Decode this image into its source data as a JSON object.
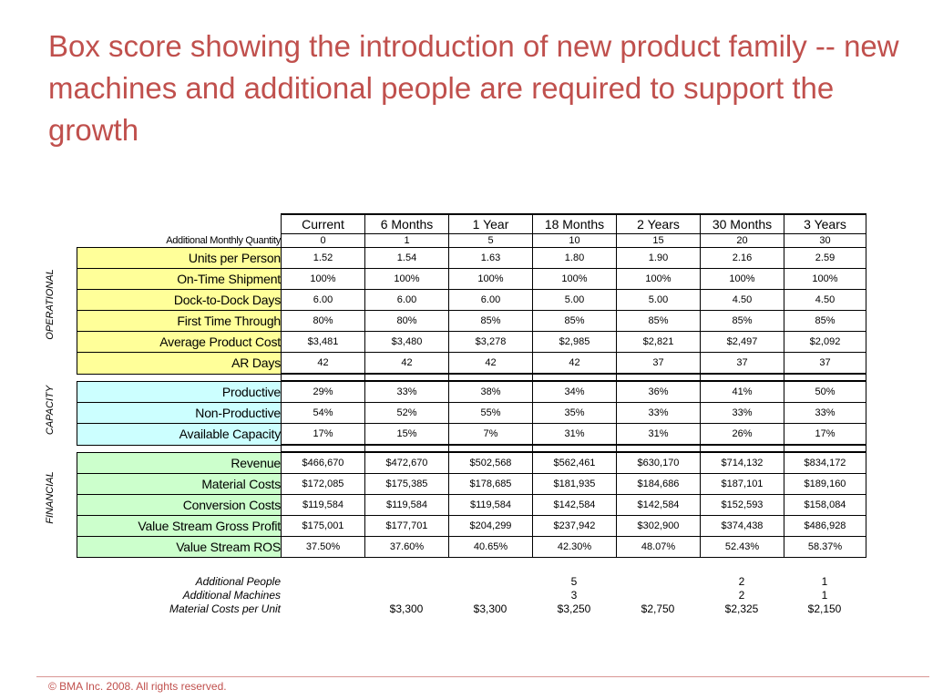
{
  "title": "Box score showing the introduction of new product family -- new machines and additional people are required to support the growth",
  "columns": [
    "Current",
    "6 Months",
    "1 Year",
    "18 Months",
    "2 Years",
    "30 Months",
    "3 Years"
  ],
  "quantity_label": "Additional Monthly Quantity",
  "quantities": [
    "0",
    "1",
    "5",
    "10",
    "15",
    "20",
    "30"
  ],
  "sections": {
    "operational": {
      "label": "OPERATIONAL",
      "rows": [
        {
          "label": "Units per Person",
          "values": [
            "1.52",
            "1.54",
            "1.63",
            "1.80",
            "1.90",
            "2.16",
            "2.59"
          ]
        },
        {
          "label": "On-Time Shipment",
          "values": [
            "100%",
            "100%",
            "100%",
            "100%",
            "100%",
            "100%",
            "100%"
          ]
        },
        {
          "label": "Dock-to-Dock Days",
          "values": [
            "6.00",
            "6.00",
            "6.00",
            "5.00",
            "5.00",
            "4.50",
            "4.50"
          ]
        },
        {
          "label": "First Time Through",
          "values": [
            "80%",
            "80%",
            "85%",
            "85%",
            "85%",
            "85%",
            "85%"
          ]
        },
        {
          "label": "Average Product Cost",
          "values": [
            "$3,481",
            "$3,480",
            "$3,278",
            "$2,985",
            "$2,821",
            "$2,497",
            "$2,092"
          ]
        },
        {
          "label": "AR Days",
          "values": [
            "42",
            "42",
            "42",
            "42",
            "37",
            "37",
            "37"
          ]
        }
      ]
    },
    "capacity": {
      "label": "CAPACITY",
      "rows": [
        {
          "label": "Productive",
          "values": [
            "29%",
            "33%",
            "38%",
            "34%",
            "36%",
            "41%",
            "50%"
          ]
        },
        {
          "label": "Non-Productive",
          "values": [
            "54%",
            "52%",
            "55%",
            "35%",
            "33%",
            "33%",
            "33%"
          ]
        },
        {
          "label": "Available Capacity",
          "values": [
            "17%",
            "15%",
            "7%",
            "31%",
            "31%",
            "26%",
            "17%"
          ]
        }
      ]
    },
    "financial": {
      "label": "FINANCIAL",
      "rows": [
        {
          "label": "Revenue",
          "values": [
            "$466,670",
            "$472,670",
            "$502,568",
            "$562,461",
            "$630,170",
            "$714,132",
            "$834,172"
          ]
        },
        {
          "label": "Material Costs",
          "values": [
            "$172,085",
            "$175,385",
            "$178,685",
            "$181,935",
            "$184,686",
            "$187,101",
            "$189,160"
          ]
        },
        {
          "label": "Conversion Costs",
          "values": [
            "$119,584",
            "$119,584",
            "$119,584",
            "$142,584",
            "$142,584",
            "$152,593",
            "$158,084"
          ]
        },
        {
          "label": "Value Stream Gross Profit",
          "values": [
            "$175,001",
            "$177,701",
            "$204,299",
            "$237,942",
            "$302,900",
            "$374,438",
            "$486,928"
          ]
        },
        {
          "label": "Value Stream ROS",
          "values": [
            "37.50%",
            "37.60%",
            "40.65%",
            "42.30%",
            "48.07%",
            "52.43%",
            "58.37%"
          ]
        }
      ]
    }
  },
  "additional": [
    {
      "label": "Additional People",
      "values": [
        "",
        "",
        "",
        "5",
        "",
        "2",
        "1"
      ]
    },
    {
      "label": "Additional Machines",
      "values": [
        "",
        "",
        "",
        "3",
        "",
        "2",
        "1"
      ]
    },
    {
      "label": "Material Costs per Unit",
      "values": [
        "",
        "$3,300",
        "$3,300",
        "$3,250",
        "$2,750",
        "$2,325",
        "$2,150"
      ]
    }
  ],
  "footer": "© BMA Inc.  2008.  All rights reserved.",
  "colors": {
    "title": "#c0504d",
    "operational": "#ffff99",
    "capacity": "#ccffff",
    "financial": "#ccffcc"
  }
}
